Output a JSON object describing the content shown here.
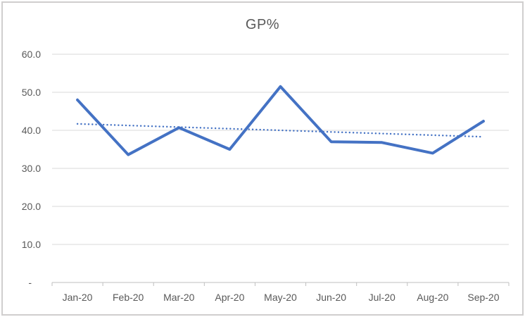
{
  "chart_data": {
    "type": "line",
    "title": "GP%",
    "xlabel": "",
    "ylabel": "",
    "legend": "none",
    "grid": "horizontal",
    "ylim": [
      0,
      60
    ],
    "categories": [
      "Jan-20",
      "Feb-20",
      "Mar-20",
      "Apr-20",
      "May-20",
      "Jun-20",
      "Jul-20",
      "Aug-20",
      "Sep-20"
    ],
    "series": [
      {
        "name": "GP%",
        "values": [
          48.0,
          33.6,
          40.7,
          35.0,
          51.5,
          37.0,
          36.8,
          34.0,
          42.4
        ],
        "color": "#4472C4",
        "style": "solid"
      }
    ],
    "trendline": {
      "type": "linear",
      "start_value": 41.7,
      "end_value": 38.3,
      "color": "#4472C4",
      "style": "dotted"
    },
    "y_ticks": [
      {
        "label": "60.0",
        "value": 60
      },
      {
        "label": "50.0",
        "value": 50
      },
      {
        "label": "40.0",
        "value": 40
      },
      {
        "label": "30.0",
        "value": 30
      },
      {
        "label": "20.0",
        "value": 20
      },
      {
        "label": "10.0",
        "value": 10
      },
      {
        "label": "-",
        "value": 0
      }
    ],
    "colors": {
      "series": "#4472C4",
      "trendline": "#4472C4",
      "gridline": "#D9D9D9",
      "axis": "#BFBFBF",
      "text": "#595959",
      "title": "#595959",
      "border": "#D0CECE",
      "background": "#FFFFFF"
    }
  }
}
